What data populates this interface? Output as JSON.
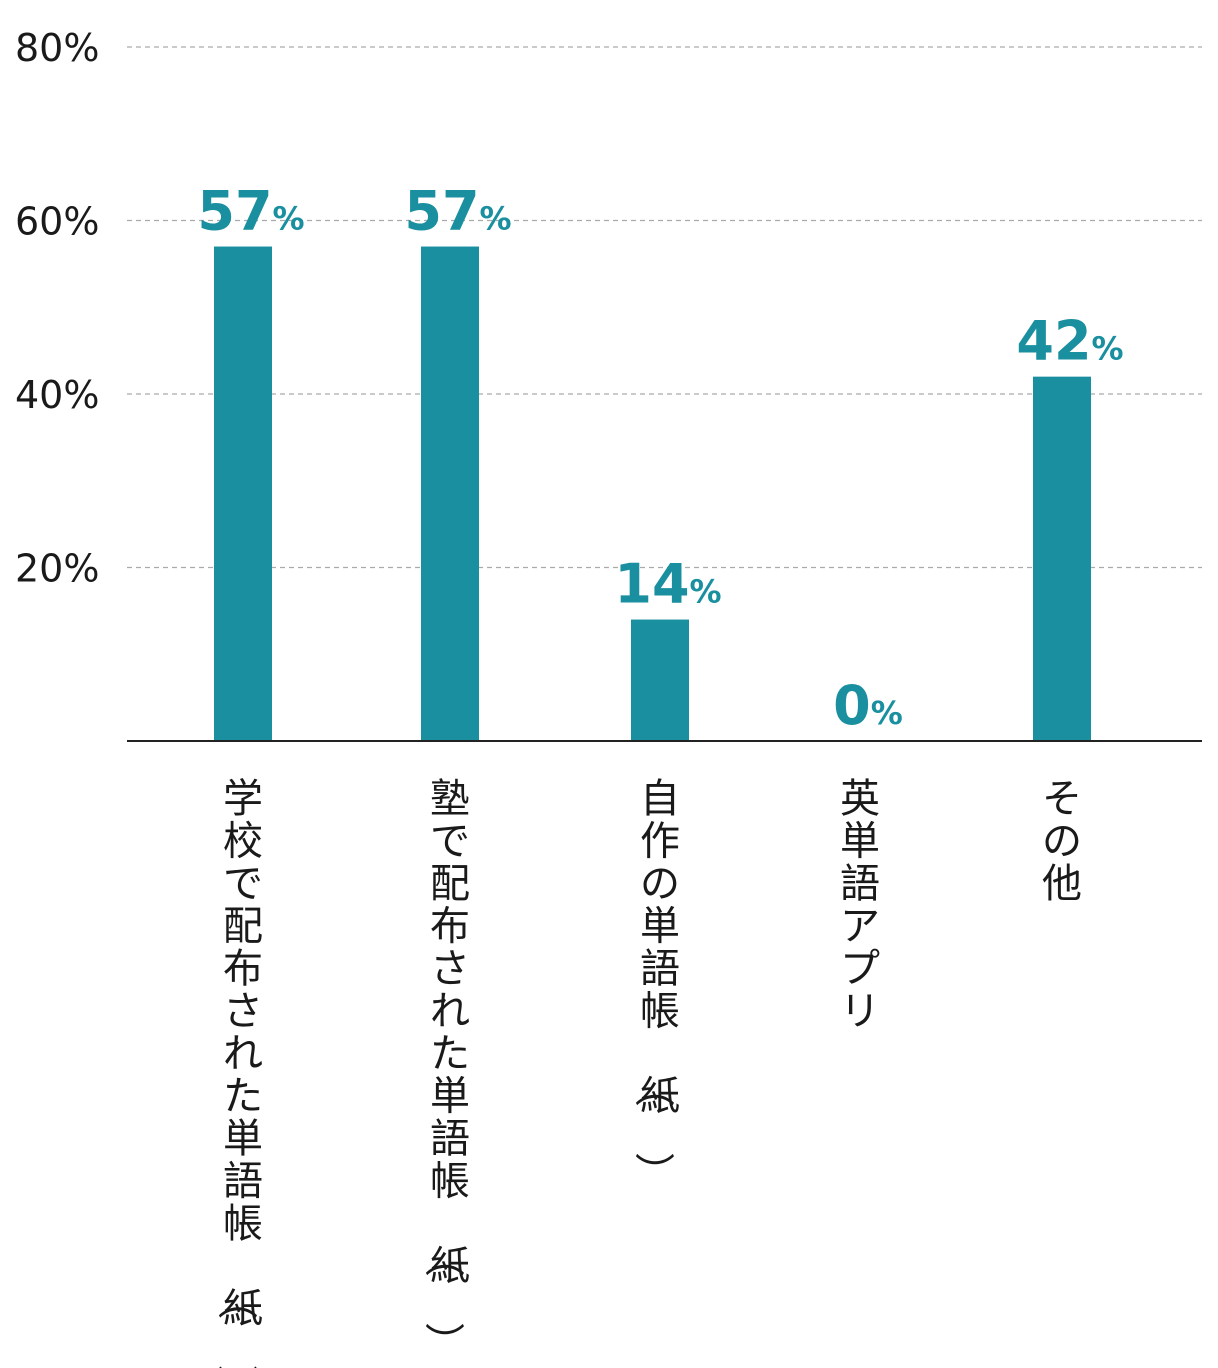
{
  "chart_data": {
    "type": "bar",
    "categories": [
      "学校で配布された単語帳（紙）",
      "塾で配布された単語帳（紙）",
      "自作の単語帳（紙）",
      "英単語アプリ",
      "その他"
    ],
    "values": [
      57,
      57,
      14,
      0,
      42
    ],
    "unit": "%",
    "ylim": [
      0,
      80
    ],
    "yticks": [
      20,
      40,
      60,
      80
    ],
    "ytick_labels": [
      "20%",
      "40%",
      "60%",
      "80%"
    ],
    "grid": true,
    "title": "",
    "xlabel": "",
    "ylabel": ""
  },
  "colors": {
    "bar": "#1a8fa0",
    "label": "#1a8fa0",
    "grid": "#aaaaaa",
    "axis": "#222222",
    "text": "#1a1a1a"
  }
}
